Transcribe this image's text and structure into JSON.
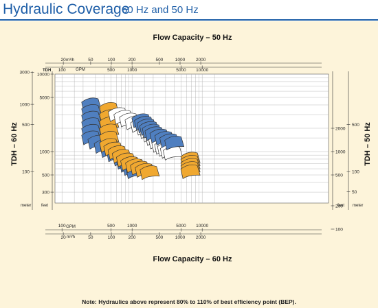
{
  "header": {
    "title": "Hydraulic Coverage",
    "subtitle": "60 Hz and 50 Hz"
  },
  "chart_data": {
    "type": "area",
    "title_top": "Flow Capacity – 50 Hz",
    "title_bottom": "Flow Capacity – 60 Hz",
    "ylabel_left": "TDH – 60 Hz",
    "ylabel_right": "TDH – 50 Hz",
    "note": "Note: Hydraulics above represent 80% to 110% of best efficiency point (BEP).",
    "colors": {
      "blue": "#4f7fc0",
      "orange": "#f0a830",
      "white": "#ffffff",
      "outline": "#333333"
    },
    "grid": true,
    "axes": {
      "top_m3h": {
        "unit": "m³/h",
        "ticks": [
          "20",
          "50",
          "100",
          "200",
          "500",
          "1000",
          "2000"
        ]
      },
      "top_gpm": {
        "unit": "GPM",
        "ticks": [
          "100",
          "500",
          "1000",
          "5000",
          "10000"
        ]
      },
      "bottom_gpm": {
        "unit": "GPM",
        "ticks": [
          "100",
          "500",
          "1000",
          "5000",
          "10000"
        ]
      },
      "bottom_m3h": {
        "unit": "m³/h",
        "ticks": [
          "20",
          "50",
          "100",
          "200",
          "500",
          "1000",
          "2000"
        ]
      },
      "left_meter": {
        "unit": "meter",
        "ticks": [
          "3000",
          "1000",
          "500",
          "100"
        ]
      },
      "left_feet": {
        "unit": "TDH",
        "unit2": "feet",
        "ticks": [
          "10000",
          "5000",
          "1000",
          "500",
          "300"
        ]
      },
      "right_feet": {
        "unit": "feet",
        "ticks": [
          "2000",
          "1000",
          "500",
          "100",
          "200"
        ]
      },
      "right_meter": {
        "unit": "meter",
        "ticks": [
          "500",
          "100",
          "50"
        ]
      }
    },
    "series": [
      {
        "color": "blue",
        "flow_gpm": [
          250,
          250,
          700,
          1200
        ],
        "head_ft": [
          4000,
          1500,
          800,
          500
        ]
      },
      {
        "color": "orange",
        "flow_gpm": [
          450,
          450,
          900,
          2000
        ],
        "head_ft": [
          3500,
          1200,
          700,
          500
        ]
      },
      {
        "color": "white",
        "flow_gpm": [
          600,
          1500,
          2500,
          4000
        ],
        "head_ft": [
          3000,
          2000,
          1200,
          900
        ]
      },
      {
        "color": "blue",
        "flow_gpm": [
          1300,
          2000,
          4500
        ],
        "head_ft": [
          2500,
          1700,
          1200
        ]
      },
      {
        "color": "orange",
        "flow_gpm": [
          6500,
          6500
        ],
        "head_ft": [
          800,
          500
        ]
      }
    ]
  }
}
